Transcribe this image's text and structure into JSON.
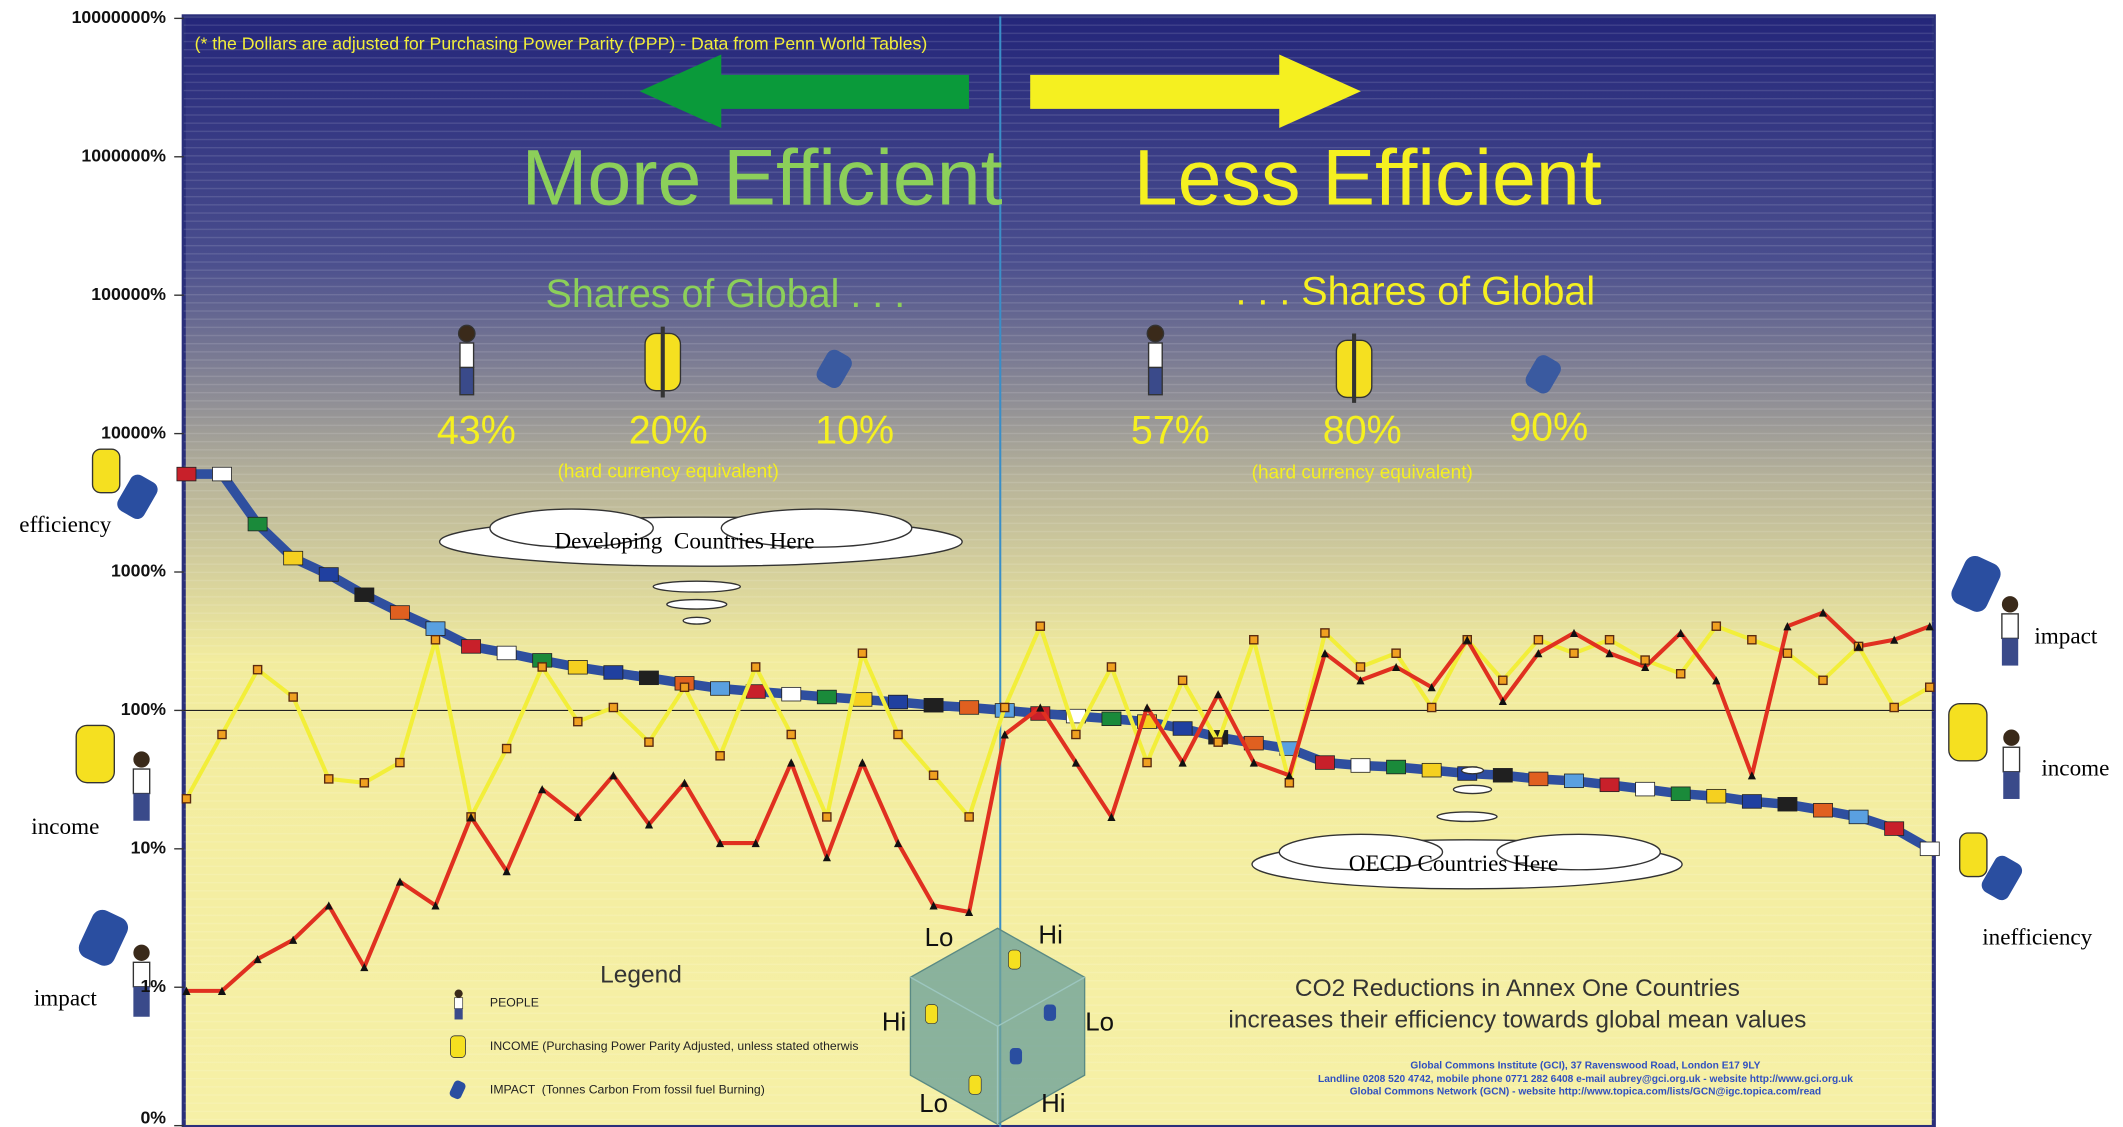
{
  "chart_data": {
    "type": "line",
    "note": "(* the Dollars are adjusted for Purchasing Power Parity (PPP) - Data from Penn World Tables)",
    "headline_left": "More Efficient",
    "headline_right": "Less Efficient",
    "shares_left_title": "Shares of Global . . .",
    "shares_right_title": ". . . Shares of Global",
    "shares_left": [
      "43%",
      "20%",
      "10%"
    ],
    "shares_right": [
      "57%",
      "80%",
      "90%"
    ],
    "shares_left_note": "(hard currency equivalent)",
    "shares_right_note": "(hard currency equivalent)",
    "cloud_left": "Developing  Countries Here",
    "cloud_right": "OECD Countries Here",
    "side_labels_left": [
      "efficiency",
      "income",
      "impact"
    ],
    "side_labels_right": [
      "impact",
      "income",
      "inefficiency"
    ],
    "legend_title": "Legend",
    "legend_items": [
      "PEOPLE",
      "INCOME (Purchasing Power Parity Adjusted, unless stated otherwis",
      "IMPACT  (Tonnes Carbon From fossil fuel Burning)"
    ],
    "cube_labels": [
      "Lo",
      "Hi",
      "Hi",
      "Lo",
      "Lo",
      "Hi"
    ],
    "message": [
      "CO2 Reductions in Annex One Countries",
      "increases their efficiency towards global mean values"
    ],
    "footer": [
      "Global Commons Institute (GCI), 37 Ravenswood Road, London E17 9LY",
      "Landline 0208 520 4742, mobile phone 0771 282 6408 e-mail aubrey@gci.org.uk - website http://www.gci.org.uk",
      "Global Commons Network (GCN) - website http://www.topica.com/lists/GCN@igc.topica.com/read"
    ],
    "log_scale": true,
    "ylim": [
      0.1,
      10000000
    ],
    "yticks": [
      {
        "value": 0.1,
        "label": "0%"
      },
      {
        "value": 1,
        "label": "1%"
      },
      {
        "value": 10,
        "label": "10%"
      },
      {
        "value": 100,
        "label": "100%"
      },
      {
        "value": 1000,
        "label": "1000%"
      },
      {
        "value": 10000,
        "label": "10000%"
      },
      {
        "value": 100000,
        "label": "100000%"
      },
      {
        "value": 1000000,
        "label": "1000000%"
      },
      {
        "value": 10000000,
        "label": "10000000%"
      }
    ],
    "reference_line": 100,
    "categories": [
      null,
      null,
      null,
      null,
      null,
      null,
      null,
      null,
      null,
      null,
      null,
      null,
      null,
      null,
      null,
      null,
      null,
      null,
      null,
      null,
      null,
      null,
      null,
      null,
      null,
      null,
      null,
      null,
      null,
      null,
      null,
      null,
      null,
      null,
      null,
      null,
      null,
      null,
      null,
      null,
      null,
      null,
      null,
      null,
      null,
      null,
      null,
      null,
      null,
      null
    ],
    "series": [
      {
        "name": "efficiency",
        "color": "#2f4f9f",
        "values": [
          5100,
          5100,
          2220,
          1260,
          960,
          685,
          510,
          390,
          290,
          260,
          230,
          205,
          188,
          172,
          157,
          144,
          137,
          131,
          125,
          120,
          115,
          109,
          105,
          100,
          95,
          91,
          87,
          83,
          74,
          64,
          58,
          53,
          42,
          40,
          39,
          37,
          35,
          34,
          32,
          31,
          29,
          27,
          25,
          24,
          22,
          21,
          19,
          17,
          14,
          10
        ]
      },
      {
        "name": "income",
        "color": "#f2ee3a",
        "values": [
          23,
          67,
          197,
          125,
          32,
          30,
          42,
          324,
          17,
          53,
          206,
          83,
          105,
          59,
          147,
          47,
          206,
          67,
          17,
          259,
          67,
          34,
          17,
          105,
          406,
          67,
          206,
          42,
          165,
          59,
          324,
          30,
          363,
          206,
          259,
          105,
          324,
          165,
          324,
          259,
          324,
          231,
          184,
          406,
          324,
          259,
          165,
          290,
          105,
          147
        ]
      },
      {
        "name": "impact",
        "color": "#e03020",
        "values": [
          0.94,
          0.94,
          1.6,
          2.2,
          3.9,
          1.4,
          5.8,
          3.9,
          17,
          6.9,
          27,
          17,
          34,
          15,
          30,
          11,
          11,
          42,
          8.7,
          42,
          11,
          3.9,
          3.5,
          67,
          105,
          42,
          17,
          105,
          42,
          131,
          42,
          34,
          259,
          165,
          206,
          147,
          324,
          117,
          259,
          363,
          259,
          206,
          363,
          165,
          34,
          406,
          510,
          290,
          324,
          406
        ]
      }
    ]
  }
}
